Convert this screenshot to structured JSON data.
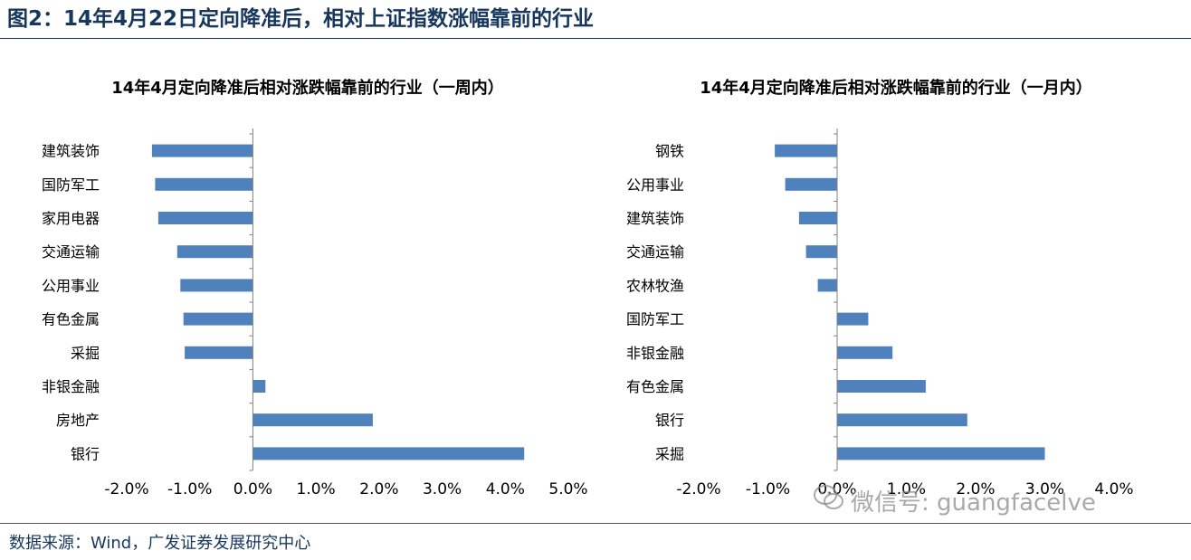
{
  "figure": {
    "title": "图2：14年4月22日定向降准后，相对上证指数涨幅靠前的行业",
    "source": "数据来源：Wind，广发证券发展研究中心",
    "watermark": "微信号: guangfacelve",
    "watermark_icon": "wechat-icon"
  },
  "colors": {
    "bar": "#4f81bd",
    "title": "#17375e",
    "axis": "#808080"
  },
  "chart_data": [
    {
      "type": "bar",
      "orientation": "horizontal",
      "title": "14年4月定向降准后相对涨跌幅靠前的行业（一周内）",
      "categories": [
        "建筑装饰",
        "国防军工",
        "家用电器",
        "交通运输",
        "公用事业",
        "有色金属",
        "采掘",
        "非银金融",
        "房地产",
        "银行"
      ],
      "values": [
        -1.6,
        -1.55,
        -1.5,
        -1.2,
        -1.15,
        -1.1,
        -1.08,
        0.2,
        1.9,
        4.3
      ],
      "xlim": [
        -2.0,
        5.0
      ],
      "xticks": [
        "-2.0%",
        "-1.0%",
        "0.0%",
        "1.0%",
        "2.0%",
        "3.0%",
        "4.0%",
        "5.0%"
      ],
      "xlabel": "",
      "ylabel": "",
      "grid": false,
      "legend": "none"
    },
    {
      "type": "bar",
      "orientation": "horizontal",
      "title": "14年4月定向降准后相对涨跌幅靠前的行业（一月内）",
      "categories": [
        "钢铁",
        "公用事业",
        "建筑装饰",
        "交通运输",
        "农林牧渔",
        "国防军工",
        "非银金融",
        "有色金属",
        "银行",
        "采掘"
      ],
      "values": [
        -0.9,
        -0.75,
        -0.55,
        -0.45,
        -0.28,
        0.45,
        0.8,
        1.28,
        1.88,
        3.0
      ],
      "xlim": [
        -2.0,
        4.0
      ],
      "xticks": [
        "-2.0%",
        "-1.0%",
        "0.0%",
        "1.0%",
        "2.0%",
        "3.0%",
        "4.0%"
      ],
      "xlabel": "",
      "ylabel": "",
      "grid": false,
      "legend": "none"
    }
  ]
}
